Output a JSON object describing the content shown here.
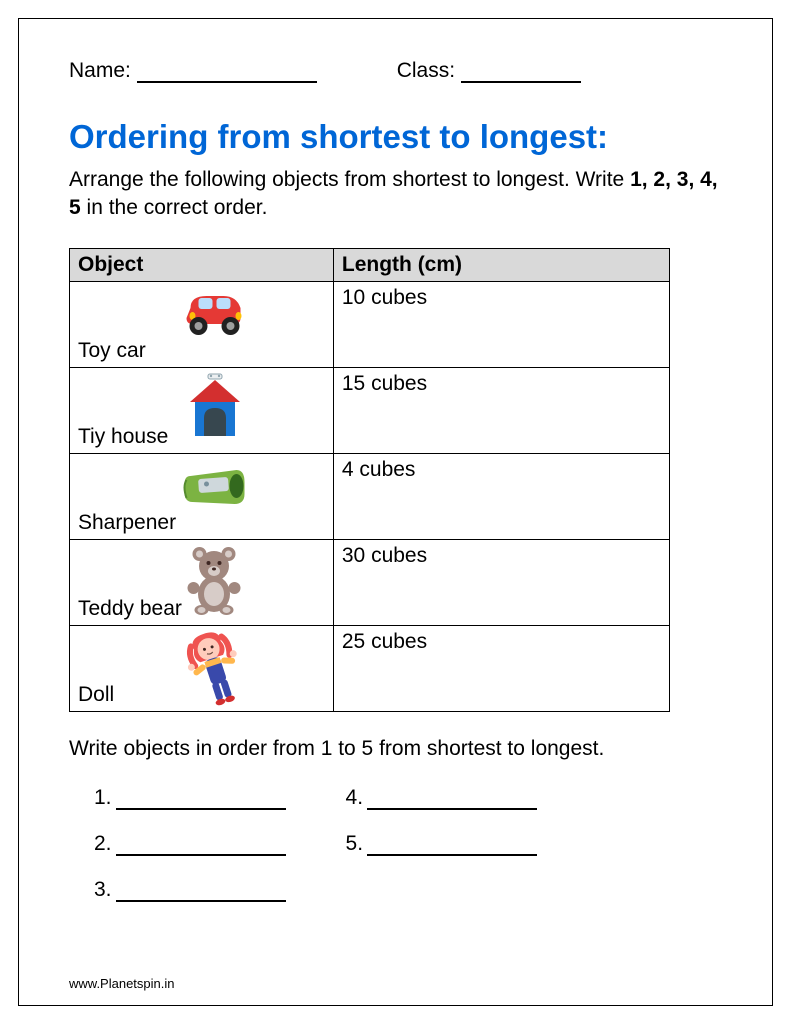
{
  "header": {
    "name_label": "Name:",
    "class_label": "Class:"
  },
  "title": "Ordering from shortest to longest:",
  "instructions": {
    "line1": "Arrange the following objects from shortest to longest",
    "line2_prefix": ". Write ",
    "bold_nums": "1, 2, 3, 4, 5",
    "line2_suffix": " in the correct order."
  },
  "table": {
    "col1": "Object",
    "col2": "Length (cm)",
    "rows": [
      {
        "label": "Toy car",
        "length": "10 cubes",
        "icon": "car"
      },
      {
        "label": "Tiy house",
        "length": "15 cubes",
        "icon": "house"
      },
      {
        "label": "Sharpener",
        "length": "4 cubes",
        "icon": "sharpener"
      },
      {
        "label": "Teddy bear",
        "length": "30 cubes",
        "icon": "teddy"
      },
      {
        "label": "Doll",
        "length": "25 cubes",
        "icon": "doll"
      }
    ]
  },
  "post_text": "Write objects in order from 1 to 5 from shortest to longest.",
  "answers": {
    "col1": [
      "1.",
      "2.",
      "3."
    ],
    "col2": [
      "4.",
      "5."
    ]
  },
  "footer": "www.Planetspin.in",
  "colors": {
    "title": "#0066d6",
    "header_bg": "#d9d9d9",
    "car_body": "#e53935",
    "car_wheel": "#212121",
    "car_window": "#bbdefb",
    "house_roof": "#d32f2f",
    "house_body": "#1976d2",
    "house_door": "#37474f",
    "sharpener": "#7cb342",
    "sharpener_blade": "#cfd8dc",
    "teddy_body": "#a1887f",
    "teddy_belly": "#d7ccc8",
    "doll_hair": "#ef5350",
    "doll_skin": "#ffccbc",
    "doll_overalls": "#3949ab"
  }
}
